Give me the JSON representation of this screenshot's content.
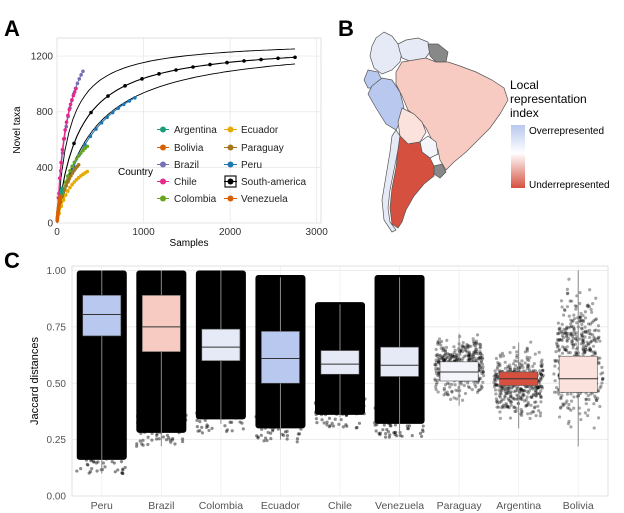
{
  "panel_labels": {
    "a": "A",
    "b": "B",
    "c": "C"
  },
  "legend": {
    "title": "Country",
    "col1": [
      {
        "name": "Argentina",
        "color": "#1b9e77"
      },
      {
        "name": "Bolivia",
        "color": "#d95f02"
      },
      {
        "name": "Brazil",
        "color": "#7570b3"
      },
      {
        "name": "Chile",
        "color": "#e7298a"
      },
      {
        "name": "Colombia",
        "color": "#66a61e"
      }
    ],
    "col2": [
      {
        "name": "Ecuador",
        "color": "#e6ab02"
      },
      {
        "name": "Paraguay",
        "color": "#a6761d"
      },
      {
        "name": "Peru",
        "color": "#1f78b4"
      },
      {
        "name": "South-america",
        "color": "#000000"
      },
      {
        "name": "Venezuela",
        "color": "#d95f02"
      }
    ]
  },
  "map_legend": {
    "title_lines": [
      "Local",
      "representation",
      "index"
    ],
    "over_label": "Overrepresented",
    "under_label": "Underrepresented",
    "over_color": "#b8c8ee",
    "mid_color": "#ffffff",
    "under_color": "#d6503f"
  },
  "chart_data": [
    {
      "panel": "A",
      "type": "line",
      "title": "",
      "xlabel": "Samples",
      "ylabel": "Novel taxa",
      "xlim": [
        0,
        3050
      ],
      "ylim": [
        0,
        1330
      ],
      "xticks": [
        0,
        1000,
        2000,
        3000
      ],
      "yticks": [
        0,
        400,
        800,
        1200
      ],
      "xtick_labels": [
        "0",
        "1000",
        "2000",
        "3000"
      ],
      "ytick_labels": [
        "0",
        "400",
        "800",
        "1200"
      ],
      "grid": true,
      "series": [
        {
          "name": "South-america",
          "color": "#000000",
          "max_samples": 2750,
          "asymptote": 1300,
          "k": 250
        },
        {
          "name": "South-america (bound 1)",
          "color": "#000000",
          "max_samples": 2750,
          "asymptote": 1310,
          "k": 400,
          "curve_only": true
        },
        {
          "name": "South-america (bound 2)",
          "color": "#000000",
          "max_samples": 2750,
          "asymptote": 1315,
          "k": 140,
          "curve_only": true
        },
        {
          "name": "Peru",
          "color": "#1f78b4",
          "max_samples": 900,
          "asymptote": 1350,
          "k": 450
        },
        {
          "name": "Brazil",
          "color": "#7570b3",
          "max_samples": 300,
          "asymptote": 1600,
          "k": 140
        },
        {
          "name": "Chile",
          "color": "#e7298a",
          "max_samples": 220,
          "asymptote": 1450,
          "k": 110
        },
        {
          "name": "Colombia",
          "color": "#66a61e",
          "max_samples": 350,
          "asymptote": 850,
          "k": 190
        },
        {
          "name": "Paraguay",
          "color": "#a6761d",
          "max_samples": 250,
          "asymptote": 720,
          "k": 180
        },
        {
          "name": "Ecuador",
          "color": "#e6ab02",
          "max_samples": 350,
          "asymptote": 560,
          "k": 180
        },
        {
          "name": "Argentina",
          "color": "#1b9e77",
          "max_samples": 60,
          "asymptote": 540,
          "k": 70
        },
        {
          "name": "Bolivia",
          "color": "#d95f02",
          "max_samples": 40,
          "asymptote": 480,
          "k": 60
        },
        {
          "name": "Venezuela",
          "color": "#d95f02",
          "max_samples": 30,
          "asymptote": 420,
          "k": 50
        }
      ]
    },
    {
      "panel": "C",
      "type": "box",
      "title": "",
      "xlabel": "",
      "ylabel": "Jaccard distances",
      "ylim": [
        0.0,
        1.02
      ],
      "yticks": [
        0.0,
        0.25,
        0.5,
        0.75,
        1.0
      ],
      "ytick_labels": [
        "0.00",
        "0.25",
        "0.50",
        "0.75",
        "1.00"
      ],
      "grid": true,
      "categories": [
        "Peru",
        "Brazil",
        "Colombia",
        "Ecuador",
        "Chile",
        "Venezuela",
        "Paraguay",
        "Argentina",
        "Bolivia"
      ],
      "boxes": [
        {
          "q1": 0.71,
          "median": 0.805,
          "q3": 0.89,
          "whisker_low": 0.1,
          "whisker_high": 1.0,
          "fill": "#b8c8ee",
          "dense": true,
          "spread_low": 0.1,
          "spread_high": 1.0
        },
        {
          "q1": 0.64,
          "median": 0.75,
          "q3": 0.89,
          "whisker_low": 0.22,
          "whisker_high": 1.0,
          "fill": "#f7cbc2",
          "dense": true,
          "spread_low": 0.22,
          "spread_high": 1.0
        },
        {
          "q1": 0.6,
          "median": 0.66,
          "q3": 0.74,
          "whisker_low": 0.32,
          "whisker_high": 1.0,
          "fill": "#e6eaf7",
          "dense": true,
          "spread_low": 0.28,
          "spread_high": 1.0
        },
        {
          "q1": 0.5,
          "median": 0.61,
          "q3": 0.73,
          "whisker_low": 0.25,
          "whisker_high": 0.97,
          "fill": "#b8c8ee",
          "dense": true,
          "spread_low": 0.24,
          "spread_high": 0.98
        },
        {
          "q1": 0.54,
          "median": 0.585,
          "q3": 0.645,
          "whisker_low": 0.35,
          "whisker_high": 0.85,
          "fill": "#e6eaf7",
          "dense": true,
          "spread_low": 0.3,
          "spread_high": 0.86
        },
        {
          "q1": 0.53,
          "median": 0.58,
          "q3": 0.66,
          "whisker_low": 0.27,
          "whisker_high": 0.97,
          "fill": "#e6eaf7",
          "dense": true,
          "spread_low": 0.26,
          "spread_high": 0.98
        },
        {
          "q1": 0.51,
          "median": 0.55,
          "q3": 0.595,
          "whisker_low": 0.4,
          "whisker_high": 0.72,
          "fill": "#f4f5fb",
          "dense": false,
          "spread_low": 0.4,
          "spread_high": 0.75
        },
        {
          "q1": 0.49,
          "median": 0.52,
          "q3": 0.55,
          "whisker_low": 0.3,
          "whisker_high": 0.68,
          "fill": "#d6503f",
          "dense": false,
          "spread_low": 0.3,
          "spread_high": 0.7
        },
        {
          "q1": 0.46,
          "median": 0.52,
          "q3": 0.62,
          "whisker_low": 0.22,
          "whisker_high": 1.0,
          "fill": "#fbe2dc",
          "dense": false,
          "spread_low": 0.22,
          "spread_high": 1.0
        }
      ]
    }
  ]
}
